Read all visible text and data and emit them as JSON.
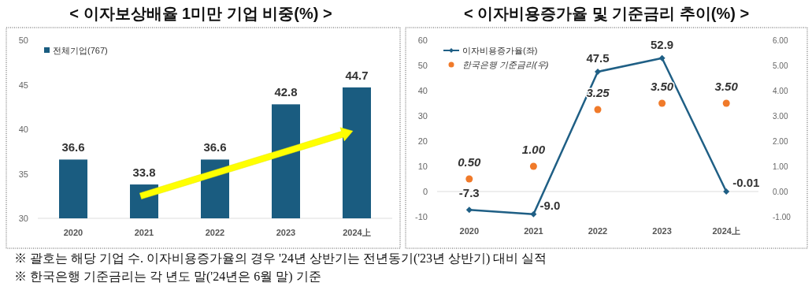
{
  "chart_data": [
    {
      "type": "bar",
      "title": "< 이자보상배율 1미만 기업 비중(%) >",
      "categories": [
        "2020",
        "2021",
        "2022",
        "2023",
        "2024上"
      ],
      "series": [
        {
          "name": "전체기업(767)",
          "color": "#1a5c80",
          "values": [
            36.6,
            33.8,
            36.6,
            42.8,
            44.7
          ]
        }
      ],
      "ylim": [
        30,
        50
      ],
      "yticks": [
        30,
        35,
        40,
        45,
        50
      ],
      "data_labels": true,
      "legend": "top left",
      "annotations": [
        "※ 괄호는 해당 기업 수. 이자비용증가율의 경우 '24년 상반기는 전년동기('23년 상반기) 대비 실적",
        "※ 한국은행 기준금리는 각 년도 말('24년은 6월 말) 기준"
      ]
    },
    {
      "type": "line",
      "title": "< 이자비용증가율 및 기준금리 추이(%) >",
      "categories": [
        "2020",
        "2021",
        "2022",
        "2023",
        "2024上"
      ],
      "series": [
        {
          "name": "이자비용증가율(좌)",
          "color": "#1f5f85",
          "marker": "diamond",
          "values": [
            -7.3,
            -9.0,
            47.5,
            52.9,
            -0.01
          ],
          "value_labels": [
            "-7.3",
            "-9.0",
            "47.5",
            "52.9",
            "-0.01"
          ]
        },
        {
          "name": "한국은행 기준금리(우)",
          "color": "#f07a2a",
          "type": "scatter",
          "marker": "circle",
          "axis": "y2",
          "values": [
            0.5,
            1.0,
            3.25,
            3.5,
            3.5
          ],
          "value_labels": [
            "0.50",
            "1.00",
            "3.25",
            "3.50",
            "3.50"
          ]
        }
      ],
      "ylim": [
        -10,
        60
      ],
      "yticks": [
        -10,
        0,
        10,
        20,
        30,
        40,
        50,
        60
      ],
      "y2lim": [
        -1,
        6
      ],
      "y2ticks": [
        {
          "value": -1,
          "label": "-1.00"
        },
        {
          "value": 0,
          "label": "0.00"
        },
        {
          "value": 1,
          "label": "1.00"
        },
        {
          "value": 2,
          "label": "2.00"
        },
        {
          "value": 3,
          "label": "3.00"
        },
        {
          "value": 4,
          "label": "4.00"
        },
        {
          "value": 5,
          "label": "5.00"
        },
        {
          "value": 6,
          "label": "6.00"
        }
      ],
      "legend": "top left"
    }
  ]
}
